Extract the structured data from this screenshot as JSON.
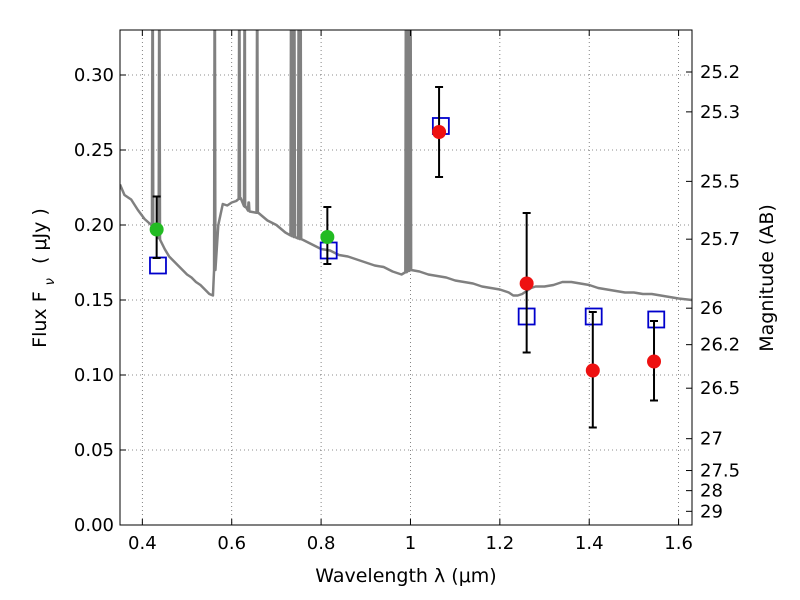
{
  "chart_data": {
    "type": "scatter",
    "xlabel": "Wavelength  λ (μm)",
    "ylabel_left": "Flux  F",
    "ylabel_left_sub": "ν",
    "ylabel_left_unit": "( μJy )",
    "ylabel_right": "Magnitude (AB)",
    "xlim": [
      0.35,
      1.63
    ],
    "ylim": [
      0.0,
      0.33
    ],
    "grid": true,
    "x_ticks": [
      0.4,
      0.6,
      0.8,
      1.0,
      1.2,
      1.4,
      1.6
    ],
    "x_tick_labels": [
      "0.4",
      "0.6",
      "0.8",
      "1",
      "1.2",
      "1.4",
      "1.6"
    ],
    "y_ticks": [
      0.0,
      0.05,
      0.1,
      0.15,
      0.2,
      0.25,
      0.3
    ],
    "y_tick_labels": [
      "0.00",
      "0.05",
      "0.10",
      "0.15",
      "0.20",
      "0.25",
      "0.30"
    ],
    "mag_ticks": [
      25.2,
      25.3,
      25.5,
      25.7,
      26.0,
      26.2,
      26.5,
      27.0,
      27.5,
      28.0,
      29.0
    ],
    "mag_tick_labels": [
      "25.2",
      "25.3",
      "25.5",
      "25.7",
      "26",
      "26.2",
      "26.5",
      "27",
      "27.5",
      "28",
      "29"
    ],
    "colors": {
      "model": "#808080",
      "observed_hst": "#22bb22",
      "observed_ir": "#ee1111",
      "model_photometry": "#0000cc",
      "errorbar": "#000000"
    },
    "series": [
      {
        "kind": "line",
        "points": [
          [
            0.35,
            0.227
          ],
          [
            0.36,
            0.22
          ],
          [
            0.375,
            0.217
          ],
          [
            0.39,
            0.21
          ],
          [
            0.405,
            0.204
          ],
          [
            0.42,
            0.2
          ],
          [
            0.43,
            0.196
          ],
          [
            0.44,
            0.19
          ],
          [
            0.45,
            0.184
          ],
          [
            0.46,
            0.179
          ],
          [
            0.47,
            0.176
          ],
          [
            0.48,
            0.173
          ],
          [
            0.49,
            0.17
          ],
          [
            0.5,
            0.167
          ],
          [
            0.51,
            0.165
          ],
          [
            0.52,
            0.162
          ],
          [
            0.53,
            0.16
          ],
          [
            0.54,
            0.157
          ],
          [
            0.55,
            0.154
          ],
          [
            0.558,
            0.153
          ],
          [
            0.562,
            0.17
          ],
          [
            0.57,
            0.2
          ],
          [
            0.58,
            0.214
          ],
          [
            0.59,
            0.213
          ],
          [
            0.6,
            0.215
          ],
          [
            0.61,
            0.216
          ],
          [
            0.62,
            0.218
          ],
          [
            0.63,
            0.212
          ],
          [
            0.64,
            0.209
          ],
          [
            0.66,
            0.208
          ],
          [
            0.68,
            0.203
          ],
          [
            0.7,
            0.2
          ],
          [
            0.72,
            0.195
          ],
          [
            0.74,
            0.192
          ],
          [
            0.76,
            0.19
          ],
          [
            0.78,
            0.187
          ],
          [
            0.8,
            0.184
          ],
          [
            0.82,
            0.183
          ],
          [
            0.84,
            0.18
          ],
          [
            0.86,
            0.179
          ],
          [
            0.88,
            0.177
          ],
          [
            0.9,
            0.175
          ],
          [
            0.92,
            0.173
          ],
          [
            0.94,
            0.172
          ],
          [
            0.96,
            0.169
          ],
          [
            0.98,
            0.167
          ],
          [
            1.0,
            0.17
          ],
          [
            1.02,
            0.169
          ],
          [
            1.04,
            0.167
          ],
          [
            1.06,
            0.166
          ],
          [
            1.08,
            0.165
          ],
          [
            1.1,
            0.163
          ],
          [
            1.12,
            0.162
          ],
          [
            1.14,
            0.161
          ],
          [
            1.16,
            0.159
          ],
          [
            1.18,
            0.158
          ],
          [
            1.2,
            0.157
          ],
          [
            1.22,
            0.155
          ],
          [
            1.23,
            0.153
          ],
          [
            1.24,
            0.153
          ],
          [
            1.25,
            0.154
          ],
          [
            1.26,
            0.156
          ],
          [
            1.27,
            0.158
          ],
          [
            1.28,
            0.159
          ],
          [
            1.3,
            0.159
          ],
          [
            1.32,
            0.16
          ],
          [
            1.34,
            0.162
          ],
          [
            1.36,
            0.162
          ],
          [
            1.38,
            0.161
          ],
          [
            1.4,
            0.16
          ],
          [
            1.42,
            0.158
          ],
          [
            1.44,
            0.157
          ],
          [
            1.46,
            0.156
          ],
          [
            1.48,
            0.155
          ],
          [
            1.5,
            0.155
          ],
          [
            1.52,
            0.154
          ],
          [
            1.54,
            0.154
          ],
          [
            1.56,
            0.153
          ],
          [
            1.58,
            0.152
          ],
          [
            1.6,
            0.151
          ],
          [
            1.63,
            0.15
          ]
        ],
        "emission_lines": [
          {
            "x": 0.423,
            "peak": 0.33
          },
          {
            "x": 0.438,
            "peak": 0.33
          },
          {
            "x": 0.562,
            "peak": 0.33
          },
          {
            "x": 0.617,
            "peak": 0.33
          },
          {
            "x": 0.629,
            "peak": 0.33
          },
          {
            "x": 0.638,
            "peak": 0.215
          },
          {
            "x": 0.657,
            "peak": 0.33
          },
          {
            "x": 0.733,
            "peak": 0.33
          },
          {
            "x": 0.736,
            "peak": 0.33
          },
          {
            "x": 0.74,
            "peak": 0.33
          },
          {
            "x": 0.75,
            "peak": 0.33
          },
          {
            "x": 0.754,
            "peak": 0.33
          },
          {
            "x": 0.99,
            "peak": 0.33
          },
          {
            "x": 0.996,
            "peak": 0.33
          },
          {
            "x": 1.0,
            "peak": 0.33
          }
        ]
      },
      {
        "kind": "errorbar",
        "points": [
          {
            "x": 0.432,
            "y": 0.197,
            "yerr_low": 0.019,
            "yerr_high": 0.022,
            "color": "observed_hst"
          },
          {
            "x": 0.814,
            "y": 0.192,
            "yerr_low": 0.018,
            "yerr_high": 0.02,
            "color": "observed_hst"
          },
          {
            "x": 1.064,
            "y": 0.262,
            "yerr_low": 0.03,
            "yerr_high": 0.03,
            "color": "observed_ir"
          },
          {
            "x": 1.26,
            "y": 0.161,
            "yerr_low": 0.046,
            "yerr_high": 0.047,
            "color": "observed_ir"
          },
          {
            "x": 1.408,
            "y": 0.103,
            "yerr_low": 0.038,
            "yerr_high": 0.039,
            "color": "observed_ir"
          },
          {
            "x": 1.545,
            "y": 0.109,
            "yerr_low": 0.026,
            "yerr_high": 0.027,
            "color": "observed_ir"
          }
        ]
      },
      {
        "kind": "markers",
        "points": [
          [
            0.435,
            0.173
          ],
          [
            0.817,
            0.183
          ],
          [
            1.068,
            0.266
          ],
          [
            1.26,
            0.139
          ],
          [
            1.41,
            0.139
          ],
          [
            1.55,
            0.137
          ]
        ]
      }
    ]
  }
}
